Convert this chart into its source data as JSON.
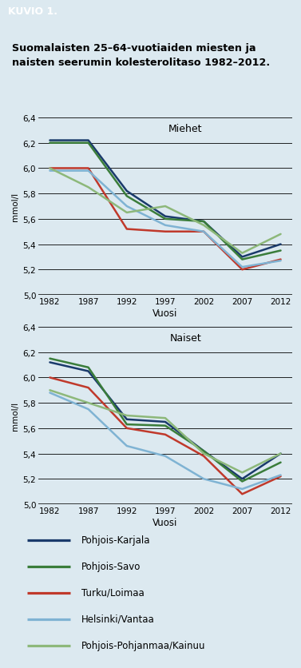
{
  "title_box": "KUVIO 1.",
  "title": "Suomalaisten 25–64-vuotiaiden miesten ja\nnaisten seerumin kolesterolitaso 1982–2012.",
  "years": [
    1982,
    1987,
    1992,
    1997,
    2002,
    2007,
    2012
  ],
  "ylabel": "mmol/l",
  "xlabel": "Vuosi",
  "ylim": [
    5.0,
    6.4
  ],
  "yticks": [
    5.0,
    5.2,
    5.4,
    5.6,
    5.8,
    6.0,
    6.2,
    6.4
  ],
  "ytick_labels": [
    "5,0",
    "5,2",
    "5,4",
    "5,6",
    "5,8",
    "6,0",
    "6,2",
    "6,4"
  ],
  "subplot_titles": [
    "Miehet",
    "Naiset"
  ],
  "series": [
    {
      "label": "Pohjois-Karjala",
      "color": "#1a3a6b",
      "men": [
        6.22,
        6.22,
        5.82,
        5.62,
        5.58,
        5.3,
        5.4
      ],
      "women": [
        6.12,
        6.05,
        5.67,
        5.65,
        5.42,
        5.2,
        5.4
      ]
    },
    {
      "label": "Pohjois-Savo",
      "color": "#3a7d3a",
      "men": [
        6.2,
        6.2,
        5.78,
        5.6,
        5.58,
        5.28,
        5.35
      ],
      "women": [
        6.15,
        6.08,
        5.63,
        5.62,
        5.42,
        5.18,
        5.33
      ]
    },
    {
      "label": "Turku/Loimaa",
      "color": "#c0392b",
      "men": [
        6.0,
        6.0,
        5.52,
        5.5,
        5.5,
        5.2,
        5.28
      ],
      "women": [
        6.0,
        5.92,
        5.6,
        5.55,
        5.38,
        5.08,
        5.22
      ]
    },
    {
      "label": "Helsinki/Vantaa",
      "color": "#7fb3d3",
      "men": [
        5.98,
        5.98,
        5.7,
        5.55,
        5.5,
        5.22,
        5.27
      ],
      "women": [
        5.88,
        5.75,
        5.46,
        5.38,
        5.2,
        5.12,
        5.23
      ]
    },
    {
      "label": "Pohjois-Pohjanmaa/Kainuu",
      "color": "#8db87a",
      "men": [
        6.0,
        5.85,
        5.65,
        5.7,
        5.55,
        5.33,
        5.48
      ],
      "women": [
        5.9,
        5.8,
        5.7,
        5.68,
        5.4,
        5.25,
        5.4
      ]
    }
  ],
  "bg_color": "#dce9f0",
  "header_bg": "#1a5f7a",
  "header_text_color": "#ffffff",
  "line_width": 1.8,
  "fig_width": 3.77,
  "fig_height": 8.37
}
